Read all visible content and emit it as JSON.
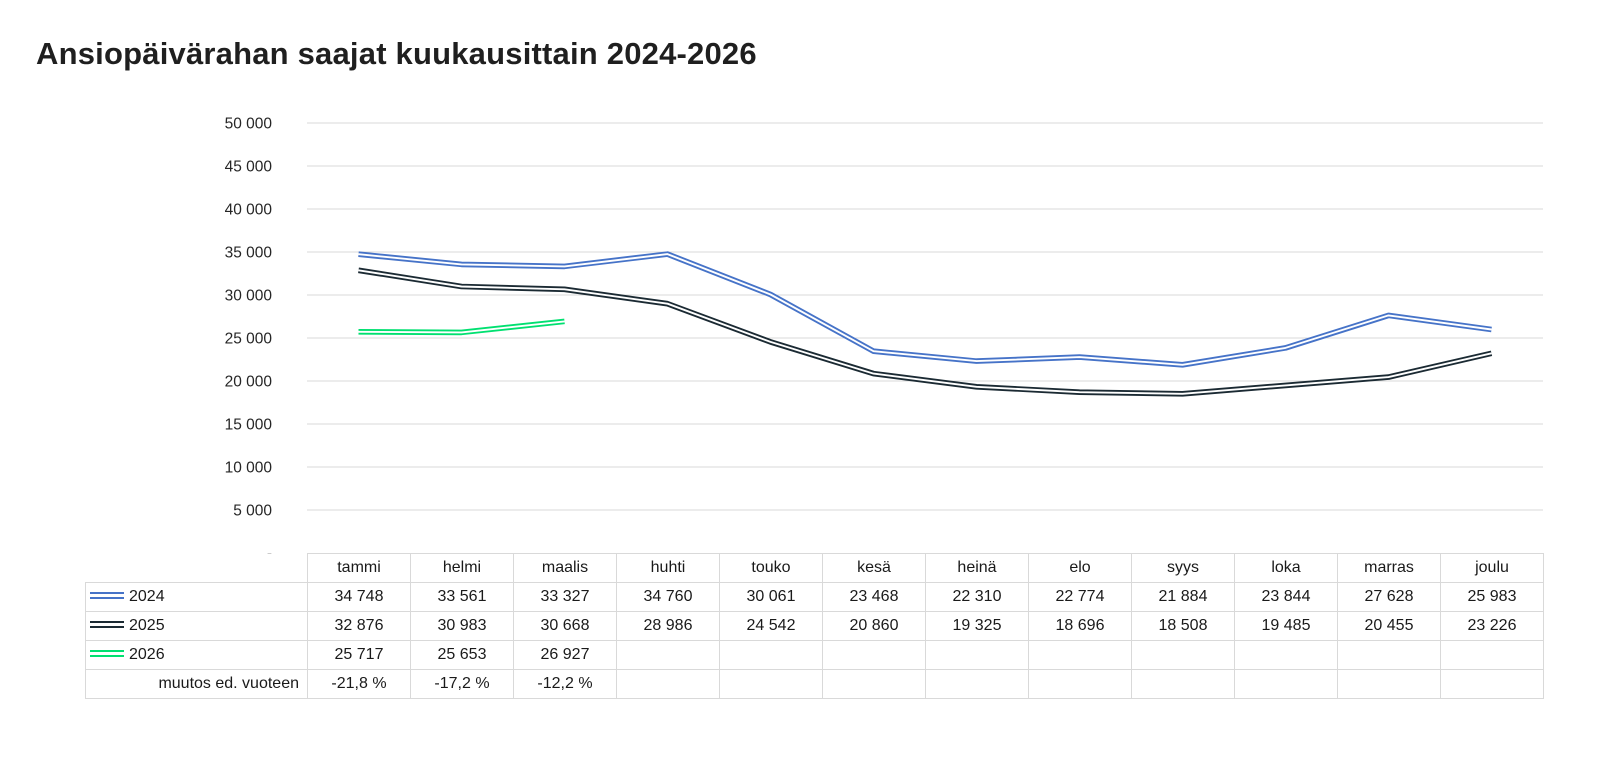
{
  "title": "Ansiopäivärahan saajat kuukausittain 2024-2026",
  "colors": {
    "s2024": "#4673c8",
    "s2025": "#1b2a33",
    "s2026": "#00e070",
    "grid": "#d9d9d9",
    "table_border": "#d9d9d9",
    "axis_text": "#262626",
    "title_text": "#1f1f1f",
    "background": "#ffffff"
  },
  "chart_data": {
    "type": "line",
    "title": "Ansiopäivärahan saajat kuukausittain 2024-2026",
    "categories": [
      "tammi",
      "helmi",
      "maalis",
      "huhti",
      "touko",
      "kesä",
      "heinä",
      "elo",
      "syys",
      "loka",
      "marras",
      "joulu"
    ],
    "series": [
      {
        "name": "2024",
        "color_key": "s2024",
        "values": [
          34748,
          33561,
          33327,
          34760,
          30061,
          23468,
          22310,
          22774,
          21884,
          23844,
          27628,
          25983
        ]
      },
      {
        "name": "2025",
        "color_key": "s2025",
        "values": [
          32876,
          30983,
          30668,
          28986,
          24542,
          20860,
          19325,
          18696,
          18508,
          19485,
          20455,
          23226
        ]
      },
      {
        "name": "2026",
        "color_key": "s2026",
        "values": [
          25717,
          25653,
          26927,
          null,
          null,
          null,
          null,
          null,
          null,
          null,
          null,
          null
        ]
      }
    ],
    "ylim": [
      0,
      50000
    ],
    "ytick_step": 5000,
    "ytick_labels": [
      "-",
      "5 000",
      "10 000",
      "15 000",
      "20 000",
      "25 000",
      "30 000",
      "35 000",
      "40 000",
      "45 000",
      "50 000"
    ],
    "grid": "horizontal",
    "line_style": "double",
    "legend_position": "table-row-labels",
    "xlabel": "",
    "ylabel": ""
  },
  "table": {
    "header": [
      "tammi",
      "helmi",
      "maalis",
      "huhti",
      "touko",
      "kesä",
      "heinä",
      "elo",
      "syys",
      "loka",
      "marras",
      "joulu"
    ],
    "rows": [
      {
        "label": "2024",
        "legend": "s2024",
        "cells": [
          "34 748",
          "33 561",
          "33 327",
          "34 760",
          "30 061",
          "23 468",
          "22 310",
          "22 774",
          "21 884",
          "23 844",
          "27 628",
          "25 983"
        ]
      },
      {
        "label": "2025",
        "legend": "s2025",
        "cells": [
          "32 876",
          "30 983",
          "30 668",
          "28 986",
          "24 542",
          "20 860",
          "19 325",
          "18 696",
          "18 508",
          "19 485",
          "20 455",
          "23 226"
        ]
      },
      {
        "label": "2026",
        "legend": "s2026",
        "cells": [
          "25 717",
          "25 653",
          "26 927",
          "",
          "",
          "",
          "",
          "",
          "",
          "",
          "",
          ""
        ]
      },
      {
        "label": "muutos ed. vuoteen",
        "legend": null,
        "cells": [
          "-21,8 %",
          "-17,2 %",
          "-12,2 %",
          "",
          "",
          "",
          "",
          "",
          "",
          "",
          "",
          ""
        ]
      }
    ]
  }
}
